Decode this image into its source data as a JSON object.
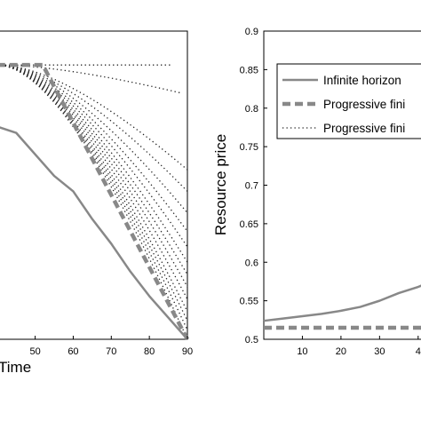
{
  "chart_data": [
    {
      "type": "line",
      "xlabel": "Time",
      "xlim": [
        40,
        90
      ],
      "ylim": [
        0,
        1
      ],
      "xticks_visible": [
        "0",
        "50",
        "60",
        "70",
        "80",
        "90"
      ],
      "series": [
        {
          "style": "solid",
          "color": "#888888",
          "x": [
            40,
            45,
            50,
            55,
            60,
            65,
            70,
            75,
            80,
            85,
            90
          ],
          "y": [
            0.69,
            0.67,
            0.6,
            0.53,
            0.48,
            0.39,
            0.31,
            0.22,
            0.14,
            0.07,
            0.0
          ]
        },
        {
          "style": "dashed",
          "color": "#888888",
          "x": [
            40,
            52,
            90
          ],
          "y": [
            0.89,
            0.89,
            0.0
          ]
        }
      ],
      "dotted_family": {
        "style": "dotted",
        "color": "#222222",
        "start": [
          40,
          0.89
        ],
        "endpoints": [
          [
            90,
            0.0
          ],
          [
            90,
            0.03
          ],
          [
            90,
            0.06
          ],
          [
            90,
            0.09
          ],
          [
            90,
            0.13
          ],
          [
            90,
            0.17
          ],
          [
            90,
            0.21
          ],
          [
            90,
            0.25
          ],
          [
            90,
            0.3
          ],
          [
            90,
            0.35
          ],
          [
            90,
            0.41
          ],
          [
            90,
            0.48
          ],
          [
            90,
            0.55
          ],
          [
            88,
            0.8
          ],
          [
            86,
            0.89
          ]
        ]
      }
    },
    {
      "type": "line",
      "ylabel": "Resource price",
      "xlim": [
        0,
        42
      ],
      "ylim": [
        0.5,
        0.9
      ],
      "xticks": [
        "10",
        "20",
        "30",
        "4"
      ],
      "yticks": [
        "0.5",
        "0.55",
        "0.6",
        "0.65",
        "0.7",
        "0.75",
        "0.8",
        "0.85",
        "0.9"
      ],
      "legend_position": "top-right",
      "legend": [
        {
          "label": "Infinite horizon",
          "style": "solid"
        },
        {
          "label": "Progressive fini",
          "style": "dashed"
        },
        {
          "label": "Progressive fini",
          "style": "dotted"
        }
      ],
      "series": [
        {
          "name": "Infinite horizon",
          "style": "solid",
          "color": "#888888",
          "x": [
            0,
            5,
            10,
            15,
            20,
            25,
            30,
            35,
            40,
            42
          ],
          "y": [
            0.524,
            0.527,
            0.53,
            0.533,
            0.537,
            0.542,
            0.55,
            0.56,
            0.568,
            0.572
          ]
        },
        {
          "name": "Progressive fini",
          "style": "dashed",
          "color": "#888888",
          "x": [
            0,
            42
          ],
          "y": [
            0.515,
            0.515
          ]
        }
      ]
    }
  ]
}
